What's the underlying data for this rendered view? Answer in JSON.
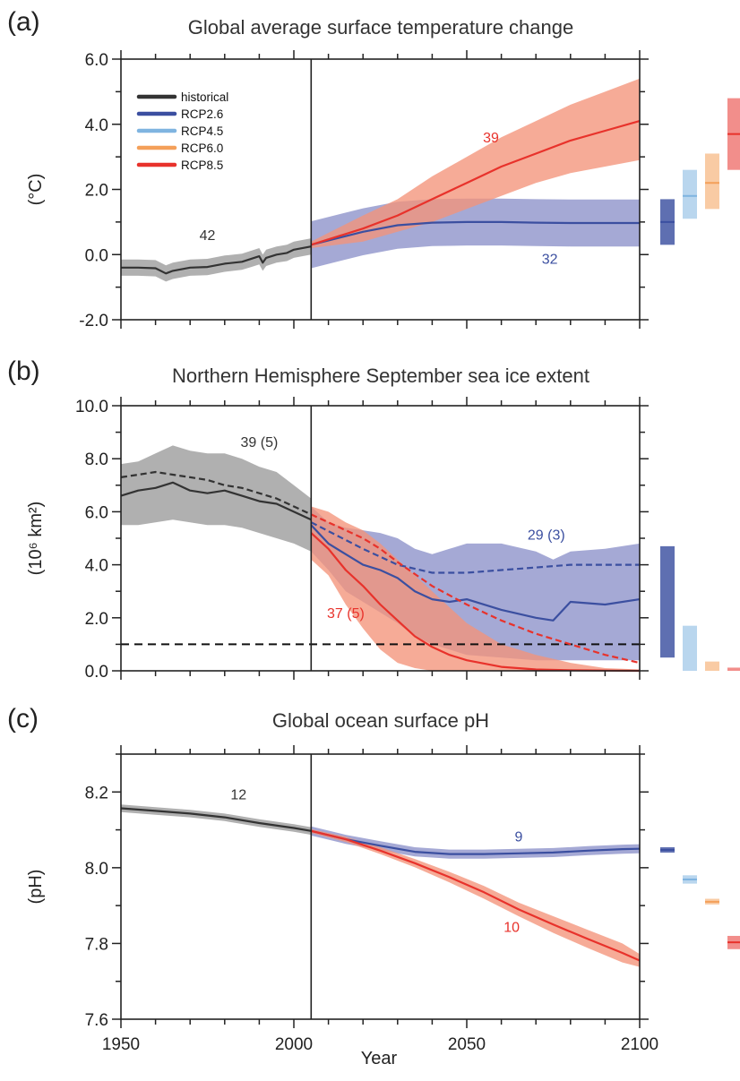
{
  "colors": {
    "historical": "#333333",
    "historical_band": "#9a9a9a",
    "rcp26": "#3b4fa0",
    "rcp26_band": "#8c91c9",
    "rcp45": "#7fb4e0",
    "rcp60": "#f4a05a",
    "rcp85": "#e8322b",
    "rcp85_band": "#f4937a"
  },
  "legend": [
    "historical",
    "RCP2.6",
    "RCP4.5",
    "RCP6.0",
    "RCP8.5"
  ],
  "x_axis": {
    "label": "Year",
    "ticks": [
      "1950",
      "2000",
      "2050",
      "2100"
    ]
  },
  "chart_data": [
    {
      "type": "line",
      "panel": "(a)",
      "title": "Global average surface temperature change",
      "ylabel": "(°C)",
      "xlim": [
        1950,
        2100
      ],
      "ylim": [
        -2.0,
        6.0
      ],
      "yticks": [
        "-2.0",
        "0.0",
        "2.0",
        "4.0",
        "6.0"
      ],
      "series": [
        {
          "name": "historical",
          "x": [
            1950,
            1955,
            1960,
            1963,
            1965,
            1970,
            1975,
            1980,
            1985,
            1988,
            1990,
            1991,
            1992,
            1995,
            1998,
            2000,
            2005
          ],
          "y": [
            -0.4,
            -0.4,
            -0.42,
            -0.58,
            -0.5,
            -0.4,
            -0.38,
            -0.28,
            -0.22,
            -0.12,
            -0.05,
            -0.25,
            -0.1,
            0.0,
            0.05,
            0.15,
            0.25
          ],
          "band_half": 0.25
        },
        {
          "name": "RCP2.6",
          "x": [
            2005,
            2020,
            2030,
            2040,
            2050,
            2060,
            2070,
            2080,
            2090,
            2100
          ],
          "y": [
            0.3,
            0.7,
            0.9,
            0.98,
            1.0,
            1.0,
            0.98,
            0.97,
            0.97,
            0.97
          ],
          "band_half": 0.72
        },
        {
          "name": "RCP8.5",
          "x": [
            2005,
            2020,
            2030,
            2040,
            2050,
            2060,
            2070,
            2080,
            2090,
            2100
          ],
          "y": [
            0.3,
            0.8,
            1.2,
            1.7,
            2.2,
            2.7,
            3.1,
            3.5,
            3.8,
            4.1
          ],
          "band_lower": [
            0.2,
            0.4,
            0.7,
            1.0,
            1.4,
            1.8,
            2.2,
            2.5,
            2.7,
            2.9
          ],
          "band_upper": [
            0.4,
            1.2,
            1.7,
            2.4,
            3.0,
            3.6,
            4.1,
            4.6,
            5.0,
            5.4
          ]
        }
      ],
      "annotations": [
        {
          "text": "42",
          "x": 1975,
          "y": 0.45,
          "series": "historical"
        },
        {
          "text": "39",
          "x": 2057,
          "y": 3.45,
          "series": "RCP8.5"
        },
        {
          "text": "32",
          "x": 2074,
          "y": -0.28,
          "series": "RCP2.6"
        }
      ],
      "bars_2081_2100": [
        {
          "scenario": "RCP2.6",
          "low": 0.3,
          "mean": 1.0,
          "high": 1.7
        },
        {
          "scenario": "RCP4.5",
          "low": 1.1,
          "mean": 1.8,
          "high": 2.6
        },
        {
          "scenario": "RCP6.0",
          "low": 1.4,
          "mean": 2.2,
          "high": 3.1
        },
        {
          "scenario": "RCP8.5",
          "low": 2.6,
          "mean": 3.7,
          "high": 4.8
        }
      ]
    },
    {
      "type": "line",
      "panel": "(b)",
      "title": "Northern Hemisphere September sea ice extent",
      "ylabel": "(10⁶ km²)",
      "xlim": [
        1950,
        2100
      ],
      "ylim": [
        0.0,
        10.0
      ],
      "yticks": [
        "0.0",
        "2.0",
        "4.0",
        "6.0",
        "8.0",
        "10.0"
      ],
      "reference_line": 1.0,
      "series": [
        {
          "name": "historical",
          "x": [
            1950,
            1955,
            1960,
            1965,
            1970,
            1975,
            1980,
            1985,
            1990,
            1995,
            2000,
            2005
          ],
          "y": [
            6.6,
            6.8,
            6.9,
            7.1,
            6.8,
            6.7,
            6.8,
            6.6,
            6.4,
            6.3,
            6.0,
            5.7
          ],
          "band_lower": [
            5.5,
            5.5,
            5.6,
            5.7,
            5.6,
            5.5,
            5.5,
            5.4,
            5.2,
            5.0,
            4.8,
            4.5
          ],
          "band_upper": [
            7.8,
            7.9,
            8.2,
            8.5,
            8.3,
            8.2,
            8.2,
            8.0,
            7.7,
            7.5,
            7.0,
            6.5
          ]
        },
        {
          "name": "historical subset",
          "dashed": true,
          "x": [
            1950,
            1955,
            1960,
            1965,
            1970,
            1975,
            1980,
            1985,
            1990,
            1995,
            2000,
            2005
          ],
          "y": [
            7.3,
            7.4,
            7.5,
            7.4,
            7.3,
            7.2,
            7.0,
            6.9,
            6.7,
            6.5,
            6.2,
            5.9
          ]
        },
        {
          "name": "RCP2.6",
          "x": [
            2005,
            2010,
            2015,
            2020,
            2025,
            2030,
            2035,
            2040,
            2045,
            2050,
            2060,
            2070,
            2075,
            2080,
            2090,
            2100
          ],
          "y": [
            5.5,
            4.8,
            4.4,
            4.0,
            3.8,
            3.5,
            3.0,
            2.7,
            2.6,
            2.7,
            2.3,
            2.0,
            1.9,
            2.6,
            2.5,
            2.7
          ],
          "band_lower": [
            4.5,
            3.8,
            3.0,
            2.6,
            2.2,
            1.8,
            1.3,
            1.0,
            0.8,
            0.6,
            0.5,
            0.4,
            0.4,
            0.4,
            0.4,
            0.4
          ],
          "band_upper": [
            6.2,
            5.6,
            5.4,
            5.3,
            5.2,
            5.0,
            4.6,
            4.4,
            4.6,
            4.8,
            4.8,
            4.5,
            4.2,
            4.5,
            4.6,
            4.8
          ]
        },
        {
          "name": "RCP2.6 subset",
          "dashed": true,
          "x": [
            2005,
            2020,
            2030,
            2040,
            2050,
            2060,
            2070,
            2080,
            2090,
            2100
          ],
          "y": [
            5.6,
            4.6,
            4.0,
            3.7,
            3.7,
            3.8,
            3.9,
            4.0,
            4.0,
            4.0
          ]
        },
        {
          "name": "RCP8.5",
          "x": [
            2005,
            2010,
            2015,
            2020,
            2025,
            2030,
            2035,
            2040,
            2045,
            2050,
            2060,
            2070,
            2080,
            2090,
            2100
          ],
          "y": [
            5.2,
            4.6,
            3.8,
            3.2,
            2.5,
            1.9,
            1.3,
            0.9,
            0.6,
            0.4,
            0.15,
            0.05,
            0.02,
            0.01,
            0.0
          ],
          "band_lower": [
            4.2,
            3.6,
            2.5,
            1.6,
            0.8,
            0.3,
            0.1,
            0.0,
            0.0,
            0.0,
            0.0,
            0.0,
            0.0,
            0.0,
            0.0
          ],
          "band_upper": [
            6.2,
            6.0,
            5.6,
            5.3,
            4.8,
            4.2,
            3.6,
            3.0,
            2.4,
            1.8,
            1.0,
            0.6,
            0.3,
            0.1,
            0.05
          ]
        },
        {
          "name": "RCP8.5 subset",
          "dashed": true,
          "x": [
            2005,
            2015,
            2020,
            2025,
            2030,
            2040,
            2050,
            2060,
            2070,
            2080,
            2090,
            2100
          ],
          "y": [
            5.9,
            5.3,
            5.0,
            4.6,
            4.1,
            3.2,
            2.5,
            1.9,
            1.4,
            1.0,
            0.6,
            0.3
          ]
        }
      ],
      "annotations": [
        {
          "text": "39 (5)",
          "x": 1990,
          "y": 8.45,
          "series": "historical"
        },
        {
          "text": "29 (3)",
          "x": 2073,
          "y": 4.95,
          "series": "RCP2.6"
        },
        {
          "text": "37 (5)",
          "x": 2015,
          "y": 2.0,
          "series": "RCP8.5"
        }
      ],
      "bars_2081_2100": [
        {
          "scenario": "RCP2.6",
          "low": 0.5,
          "mean": null,
          "high": 4.7
        },
        {
          "scenario": "RCP4.5",
          "low": 0.0,
          "mean": null,
          "high": 1.7
        },
        {
          "scenario": "RCP6.0",
          "low": 0.0,
          "mean": null,
          "high": 0.35
        },
        {
          "scenario": "RCP8.5",
          "low": 0.0,
          "mean": null,
          "high": 0.12
        }
      ]
    },
    {
      "type": "line",
      "panel": "(c)",
      "title": "Global ocean surface pH",
      "ylabel": "(pH)",
      "xlim": [
        1950,
        2100
      ],
      "ylim": [
        7.6,
        8.3
      ],
      "yticks": [
        "7.6",
        "7.8",
        "8.0",
        "8.2"
      ],
      "series": [
        {
          "name": "historical",
          "x": [
            1950,
            1960,
            1970,
            1980,
            1990,
            2000,
            2005
          ],
          "y": [
            8.157,
            8.15,
            8.143,
            8.133,
            8.118,
            8.105,
            8.097
          ],
          "band_half": 0.01
        },
        {
          "name": "RCP2.6",
          "x": [
            2005,
            2015,
            2025,
            2035,
            2045,
            2055,
            2065,
            2075,
            2085,
            2095,
            2100
          ],
          "y": [
            8.097,
            8.075,
            8.058,
            8.042,
            8.036,
            8.036,
            8.038,
            8.04,
            8.045,
            8.049,
            8.05
          ],
          "band_half": 0.012
        },
        {
          "name": "RCP8.5",
          "x": [
            2005,
            2015,
            2025,
            2035,
            2045,
            2055,
            2065,
            2075,
            2085,
            2095,
            2100
          ],
          "y": [
            8.097,
            8.075,
            8.045,
            8.012,
            7.975,
            7.935,
            7.89,
            7.85,
            7.812,
            7.775,
            7.755
          ],
          "band_lower": [
            8.092,
            8.068,
            8.036,
            8.001,
            7.961,
            7.918,
            7.872,
            7.828,
            7.788,
            7.75,
            7.738
          ],
          "band_upper": [
            8.102,
            8.082,
            8.054,
            8.023,
            7.989,
            7.952,
            7.908,
            7.872,
            7.836,
            7.8,
            7.772
          ]
        }
      ],
      "annotations": [
        {
          "text": "12",
          "x": 1984,
          "y": 8.18,
          "series": "historical"
        },
        {
          "text": "9",
          "x": 2065,
          "y": 8.07,
          "series": "RCP2.6"
        },
        {
          "text": "10",
          "x": 2063,
          "y": 7.83,
          "series": "RCP8.5"
        }
      ],
      "bars_2081_2100": [
        {
          "scenario": "RCP2.6",
          "low": 8.04,
          "mean": 8.047,
          "high": 8.054
        },
        {
          "scenario": "RCP4.5",
          "low": 7.958,
          "mean": 7.969,
          "high": 7.98
        },
        {
          "scenario": "RCP6.0",
          "low": 7.903,
          "mean": 7.91,
          "high": 7.918
        },
        {
          "scenario": "RCP8.5",
          "low": 7.785,
          "mean": 7.803,
          "high": 7.82
        }
      ]
    }
  ]
}
